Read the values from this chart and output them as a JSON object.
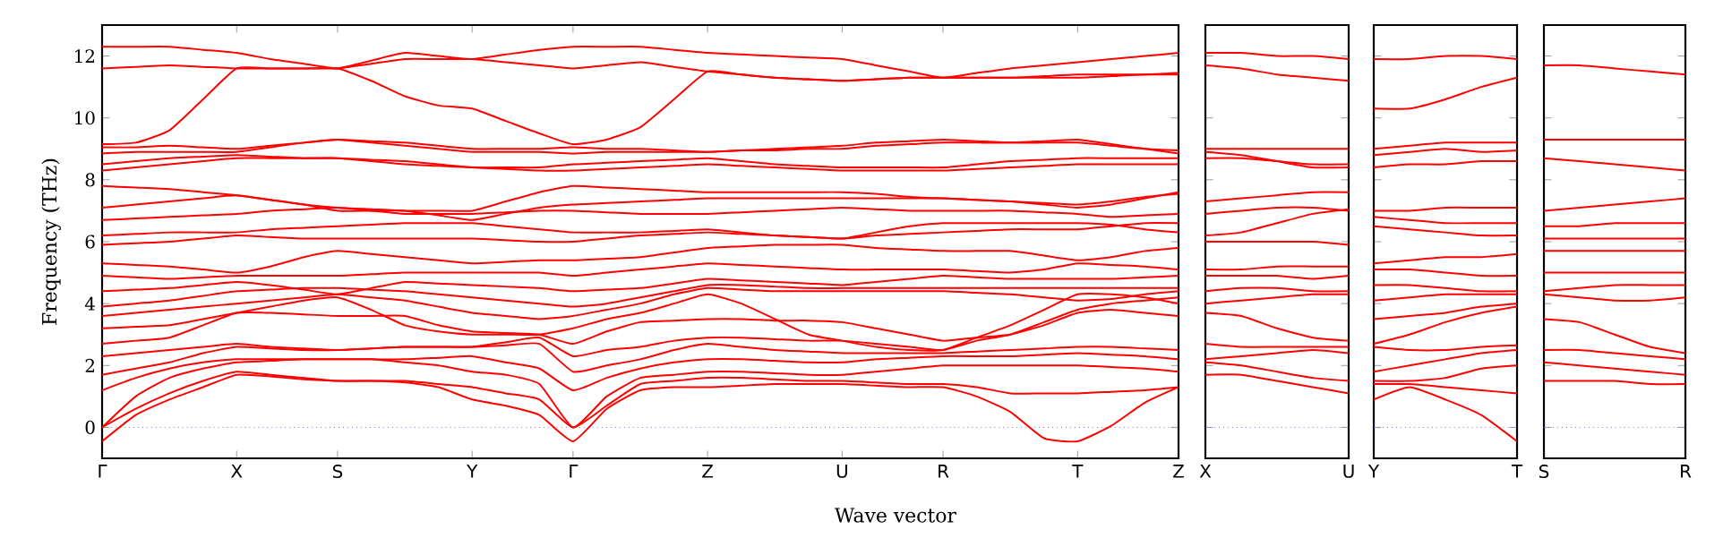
{
  "chart_data": [
    {
      "type": "line",
      "xlabel": "Wave vector",
      "ylabel": "Frequency (THz)",
      "ylim": [
        -1,
        13
      ],
      "yticks": [
        0,
        2,
        4,
        6,
        8,
        10,
        12
      ],
      "categories": [
        "Γ",
        null,
        null,
        null,
        "X",
        null,
        null,
        "S",
        null,
        null,
        null,
        "Y",
        null,
        null,
        "Γ",
        null,
        null,
        null,
        "Z",
        null,
        null,
        null,
        "U",
        null,
        null,
        "R",
        null,
        null,
        null,
        "T",
        null,
        null,
        "Z"
      ],
      "ref_lines": [
        {
          "axis": "y",
          "value": 0,
          "color": "#7070ff",
          "line_style": "dotted"
        }
      ],
      "series": [
        {
          "color": "#ff0000",
          "values": [
            -0.45,
            0.4,
            0.9,
            1.3,
            1.7,
            1.65,
            1.55,
            1.5,
            1.5,
            1.45,
            1.3,
            0.9,
            0.7,
            0.4,
            -0.45,
            0.6,
            1.2,
            1.3,
            1.3,
            1.35,
            1.4,
            1.4,
            1.4,
            1.35,
            1.3,
            1.3,
            1.0,
            0.5,
            -0.35,
            -0.45,
            0.05,
            0.8,
            1.3
          ]
        },
        {
          "color": "#ff0000",
          "values": [
            0,
            0.6,
            1.1,
            1.5,
            1.8,
            1.7,
            1.6,
            1.5,
            1.5,
            1.5,
            1.4,
            1.3,
            1.1,
            0.9,
            0,
            0.7,
            1.4,
            1.5,
            1.6,
            1.6,
            1.55,
            1.5,
            1.5,
            1.45,
            1.4,
            1.4,
            1.3,
            1.1,
            1.1,
            1.1,
            1.15,
            1.2,
            1.3
          ]
        },
        {
          "color": "#ff0000",
          "values": [
            0,
            1.0,
            1.6,
            1.9,
            2.1,
            2.15,
            2.2,
            2.2,
            2.2,
            2.1,
            2.0,
            1.8,
            1.7,
            1.4,
            0,
            1.0,
            1.6,
            1.7,
            1.8,
            1.8,
            1.75,
            1.7,
            1.7,
            1.8,
            1.9,
            2.0,
            2.0,
            2.0,
            2.0,
            2.0,
            1.95,
            1.9,
            1.8
          ]
        },
        {
          "color": "#ff0000",
          "values": [
            1.2,
            1.6,
            1.9,
            2.1,
            2.2,
            2.2,
            2.2,
            2.2,
            2.2,
            2.2,
            2.25,
            2.3,
            2.1,
            1.9,
            1.2,
            1.6,
            1.9,
            2.1,
            2.2,
            2.2,
            2.15,
            2.1,
            2.1,
            2.2,
            2.25,
            2.3,
            2.3,
            2.3,
            2.35,
            2.4,
            2.35,
            2.3,
            2.2
          ]
        },
        {
          "color": "#ff0000",
          "values": [
            1.7,
            1.9,
            2.1,
            2.4,
            2.6,
            2.55,
            2.5,
            2.5,
            2.55,
            2.6,
            2.6,
            2.6,
            2.65,
            2.7,
            1.8,
            2.0,
            2.2,
            2.5,
            2.7,
            2.6,
            2.5,
            2.45,
            2.4,
            2.4,
            2.4,
            2.4,
            2.45,
            2.5,
            2.55,
            2.6,
            2.6,
            2.55,
            2.5
          ]
        },
        {
          "color": "#ff0000",
          "values": [
            2.3,
            2.4,
            2.5,
            2.6,
            2.7,
            2.6,
            2.55,
            2.5,
            2.55,
            2.6,
            2.6,
            2.6,
            2.75,
            2.9,
            2.3,
            2.5,
            2.6,
            2.8,
            2.9,
            2.9,
            2.85,
            2.8,
            2.8,
            2.7,
            2.6,
            2.5,
            2.8,
            3.0,
            3.4,
            3.8,
            4.0,
            4.1,
            4.2
          ]
        },
        {
          "color": "#ff0000",
          "values": [
            2.7,
            2.8,
            2.9,
            3.3,
            3.7,
            3.7,
            3.65,
            3.6,
            3.6,
            3.6,
            3.3,
            3.1,
            3.05,
            3.0,
            2.7,
            3.1,
            3.4,
            3.45,
            3.5,
            3.5,
            3.45,
            3.45,
            3.4,
            3.2,
            3.0,
            2.8,
            2.9,
            3.0,
            3.3,
            3.7,
            3.8,
            3.7,
            3.6
          ]
        },
        {
          "color": "#ff0000",
          "values": [
            3.2,
            3.25,
            3.3,
            3.5,
            3.7,
            3.9,
            4.1,
            4.2,
            3.8,
            3.3,
            3.1,
            3.0,
            3.0,
            3.0,
            3.2,
            3.5,
            3.7,
            4.0,
            4.3,
            4.0,
            3.5,
            3.0,
            2.8,
            2.6,
            2.5,
            2.5,
            2.9,
            3.3,
            3.8,
            4.3,
            4.3,
            4.2,
            4.0
          ]
        },
        {
          "color": "#ff0000",
          "values": [
            3.6,
            3.7,
            3.8,
            3.9,
            4.0,
            4.1,
            4.2,
            4.3,
            4.2,
            4.1,
            3.9,
            3.7,
            3.6,
            3.5,
            3.6,
            3.8,
            4.0,
            4.3,
            4.5,
            4.45,
            4.4,
            4.4,
            4.4,
            4.4,
            4.4,
            4.4,
            4.35,
            4.3,
            4.2,
            4.1,
            4.15,
            4.3,
            4.4
          ]
        },
        {
          "color": "#ff0000",
          "values": [
            3.9,
            4.0,
            4.1,
            4.25,
            4.4,
            4.45,
            4.5,
            4.5,
            4.45,
            4.4,
            4.3,
            4.2,
            4.1,
            4.0,
            3.9,
            4.0,
            4.2,
            4.4,
            4.6,
            4.6,
            4.55,
            4.5,
            4.5,
            4.5,
            4.5,
            4.5,
            4.5,
            4.5,
            4.5,
            4.5,
            4.5,
            4.5,
            4.5
          ]
        },
        {
          "color": "#ff0000",
          "values": [
            4.4,
            4.45,
            4.5,
            4.6,
            4.7,
            4.6,
            4.45,
            4.3,
            4.5,
            4.7,
            4.65,
            4.6,
            4.55,
            4.5,
            4.4,
            4.45,
            4.5,
            4.65,
            4.8,
            4.75,
            4.7,
            4.65,
            4.6,
            4.7,
            4.8,
            4.9,
            4.85,
            4.8,
            4.8,
            4.8,
            4.8,
            4.85,
            4.9
          ]
        },
        {
          "color": "#ff0000",
          "values": [
            4.9,
            4.85,
            4.8,
            4.85,
            4.9,
            4.9,
            4.9,
            4.9,
            4.95,
            5.0,
            5.0,
            5.0,
            5.0,
            5.0,
            4.9,
            5.0,
            5.1,
            5.2,
            5.3,
            5.25,
            5.2,
            5.15,
            5.1,
            5.1,
            5.1,
            5.1,
            5.05,
            5.0,
            5.1,
            5.3,
            5.25,
            5.2,
            5.1
          ]
        },
        {
          "color": "#ff0000",
          "values": [
            5.3,
            5.25,
            5.2,
            5.1,
            5.0,
            5.2,
            5.5,
            5.7,
            5.6,
            5.5,
            5.4,
            5.3,
            5.35,
            5.4,
            5.4,
            5.45,
            5.5,
            5.65,
            5.8,
            5.85,
            5.9,
            5.9,
            5.9,
            5.8,
            5.75,
            5.7,
            5.7,
            5.7,
            5.55,
            5.4,
            5.5,
            5.7,
            5.8
          ]
        },
        {
          "color": "#ff0000",
          "values": [
            5.9,
            5.95,
            6.0,
            6.1,
            6.2,
            6.15,
            6.1,
            6.1,
            6.1,
            6.1,
            6.1,
            6.1,
            6.05,
            6.0,
            6.0,
            6.1,
            6.2,
            6.25,
            6.3,
            6.25,
            6.2,
            6.15,
            6.1,
            6.3,
            6.5,
            6.6,
            6.6,
            6.6,
            6.6,
            6.6,
            6.55,
            6.4,
            6.3
          ]
        },
        {
          "color": "#ff0000",
          "values": [
            6.2,
            6.25,
            6.3,
            6.3,
            6.3,
            6.4,
            6.45,
            6.5,
            6.55,
            6.6,
            6.6,
            6.6,
            6.5,
            6.4,
            6.3,
            6.3,
            6.3,
            6.35,
            6.4,
            6.3,
            6.2,
            6.15,
            6.1,
            6.2,
            6.25,
            6.3,
            6.35,
            6.4,
            6.4,
            6.4,
            6.5,
            6.6,
            6.6
          ]
        },
        {
          "color": "#ff0000",
          "values": [
            6.7,
            6.75,
            6.8,
            6.85,
            6.9,
            7.0,
            7.05,
            7.1,
            7.0,
            6.9,
            6.9,
            6.9,
            6.95,
            7.0,
            7.0,
            6.95,
            6.9,
            6.9,
            6.9,
            6.95,
            7.0,
            7.05,
            7.1,
            7.05,
            7.0,
            7.0,
            7.0,
            7.0,
            6.95,
            6.9,
            6.8,
            6.85,
            6.9
          ]
        },
        {
          "color": "#ff0000",
          "values": [
            7.1,
            7.2,
            7.3,
            7.4,
            7.5,
            7.35,
            7.2,
            7.0,
            7.0,
            7.0,
            6.85,
            6.7,
            6.9,
            7.1,
            7.2,
            7.25,
            7.3,
            7.35,
            7.4,
            7.4,
            7.4,
            7.4,
            7.4,
            7.4,
            7.4,
            7.4,
            7.35,
            7.3,
            7.2,
            7.1,
            7.2,
            7.4,
            7.6
          ]
        },
        {
          "color": "#ff0000",
          "values": [
            7.8,
            7.75,
            7.7,
            7.6,
            7.5,
            7.35,
            7.2,
            7.1,
            7.05,
            7.0,
            7.0,
            7.0,
            7.3,
            7.6,
            7.8,
            7.75,
            7.7,
            7.65,
            7.6,
            7.6,
            7.6,
            7.6,
            7.6,
            7.55,
            7.45,
            7.4,
            7.35,
            7.3,
            7.25,
            7.2,
            7.3,
            7.45,
            7.55
          ]
        },
        {
          "color": "#ff0000",
          "values": [
            8.3,
            8.4,
            8.5,
            8.6,
            8.7,
            8.7,
            8.7,
            8.7,
            8.6,
            8.5,
            8.45,
            8.4,
            8.35,
            8.3,
            8.3,
            8.35,
            8.4,
            8.45,
            8.5,
            8.45,
            8.4,
            8.35,
            8.3,
            8.3,
            8.3,
            8.3,
            8.35,
            8.4,
            8.45,
            8.5,
            8.5,
            8.5,
            8.5
          ]
        },
        {
          "color": "#ff0000",
          "values": [
            8.5,
            8.6,
            8.7,
            8.75,
            8.8,
            8.75,
            8.7,
            8.7,
            8.65,
            8.6,
            8.5,
            8.4,
            8.4,
            8.4,
            8.5,
            8.55,
            8.6,
            8.65,
            8.7,
            8.6,
            8.5,
            8.45,
            8.4,
            8.4,
            8.4,
            8.4,
            8.5,
            8.6,
            8.65,
            8.7,
            8.7,
            8.7,
            8.7
          ]
        },
        {
          "color": "#ff0000",
          "values": [
            8.85,
            8.9,
            8.9,
            8.9,
            8.9,
            9.05,
            9.2,
            9.3,
            9.2,
            9.1,
            9.0,
            8.9,
            8.9,
            8.9,
            8.85,
            8.9,
            8.9,
            8.9,
            8.9,
            8.95,
            8.95,
            9.0,
            9.0,
            9.1,
            9.15,
            9.2,
            9.2,
            9.2,
            9.25,
            9.3,
            9.15,
            9.0,
            8.85
          ]
        },
        {
          "color": "#ff0000",
          "values": [
            9.05,
            9.05,
            9.1,
            9.05,
            9.0,
            9.1,
            9.2,
            9.3,
            9.25,
            9.2,
            9.1,
            9.0,
            9.0,
            9.0,
            9.05,
            9.0,
            9.0,
            8.95,
            8.9,
            8.95,
            9.0,
            9.05,
            9.1,
            9.2,
            9.25,
            9.3,
            9.25,
            9.2,
            9.2,
            9.2,
            9.1,
            9.0,
            8.95
          ]
        },
        {
          "color": "#ff0000",
          "values": [
            9.15,
            9.2,
            9.6,
            10.6,
            11.6,
            11.6,
            11.6,
            11.6,
            11.2,
            10.7,
            10.4,
            10.3,
            9.9,
            9.5,
            9.15,
            9.3,
            9.7,
            10.6,
            11.5,
            11.4,
            11.3,
            11.25,
            11.2,
            11.25,
            11.3,
            11.3,
            11.3,
            11.3,
            11.3,
            11.3,
            11.35,
            11.4,
            11.4
          ]
        },
        {
          "color": "#ff0000",
          "values": [
            11.6,
            11.65,
            11.7,
            11.65,
            11.6,
            11.6,
            11.6,
            11.6,
            11.75,
            11.9,
            11.9,
            11.9,
            11.8,
            11.7,
            11.6,
            11.7,
            11.8,
            11.65,
            11.5,
            11.4,
            11.3,
            11.25,
            11.2,
            11.25,
            11.3,
            11.3,
            11.3,
            11.3,
            11.35,
            11.4,
            11.4,
            11.4,
            11.45
          ]
        },
        {
          "color": "#ff0000",
          "values": [
            12.3,
            12.3,
            12.3,
            12.2,
            12.1,
            11.9,
            11.75,
            11.6,
            11.85,
            12.1,
            12.0,
            11.9,
            12.05,
            12.2,
            12.3,
            12.3,
            12.3,
            12.2,
            12.1,
            12.05,
            12.0,
            11.95,
            11.9,
            11.7,
            11.5,
            11.3,
            11.45,
            11.6,
            11.7,
            11.8,
            11.9,
            12.0,
            12.1
          ]
        }
      ]
    },
    {
      "type": "line",
      "ylim": [
        -1,
        13
      ],
      "yticks": [
        0,
        2,
        4,
        6,
        8,
        10,
        12
      ],
      "tick_labels": "x",
      "categories": [
        "X",
        null,
        null,
        null,
        "U"
      ],
      "ref_lines": [
        {
          "axis": "y",
          "value": 0,
          "color": "#7070ff",
          "line_style": "dotted"
        }
      ],
      "series": [
        {
          "color": "#ff0000",
          "values": [
            12.1,
            12.1,
            12.0,
            12.0,
            11.9
          ]
        },
        {
          "color": "#ff0000",
          "values": [
            11.7,
            11.6,
            11.4,
            11.3,
            11.2
          ]
        },
        {
          "color": "#ff0000",
          "values": [
            9.0,
            9.0,
            9.0,
            9.0,
            9.0
          ]
        },
        {
          "color": "#ff0000",
          "values": [
            8.9,
            8.8,
            8.6,
            8.4,
            8.4
          ]
        },
        {
          "color": "#ff0000",
          "values": [
            8.7,
            8.7,
            8.6,
            8.5,
            8.5
          ]
        },
        {
          "color": "#ff0000",
          "values": [
            7.3,
            7.4,
            7.5,
            7.6,
            7.6
          ]
        },
        {
          "color": "#ff0000",
          "values": [
            6.9,
            7.0,
            7.1,
            7.1,
            7.0
          ]
        },
        {
          "color": "#ff0000",
          "values": [
            6.2,
            6.3,
            6.6,
            6.9,
            7.05
          ]
        },
        {
          "color": "#ff0000",
          "values": [
            6.0,
            6.0,
            6.0,
            6.0,
            5.9
          ]
        },
        {
          "color": "#ff0000",
          "values": [
            5.1,
            5.1,
            5.2,
            5.2,
            5.2
          ]
        },
        {
          "color": "#ff0000",
          "values": [
            4.9,
            4.9,
            4.9,
            4.8,
            4.9
          ]
        },
        {
          "color": "#ff0000",
          "values": [
            4.4,
            4.5,
            4.5,
            4.4,
            4.4
          ]
        },
        {
          "color": "#ff0000",
          "values": [
            4.0,
            4.1,
            4.2,
            4.3,
            4.3
          ]
        },
        {
          "color": "#ff0000",
          "values": [
            3.7,
            3.6,
            3.2,
            2.9,
            2.8
          ]
        },
        {
          "color": "#ff0000",
          "values": [
            2.7,
            2.6,
            2.6,
            2.6,
            2.6
          ]
        },
        {
          "color": "#ff0000",
          "values": [
            2.2,
            2.3,
            2.4,
            2.5,
            2.4
          ]
        },
        {
          "color": "#ff0000",
          "values": [
            2.1,
            2.0,
            1.8,
            1.6,
            1.5
          ]
        },
        {
          "color": "#ff0000",
          "values": [
            1.7,
            1.7,
            1.5,
            1.3,
            1.1
          ]
        }
      ]
    },
    {
      "type": "line",
      "ylim": [
        -1,
        13
      ],
      "yticks": [
        0,
        2,
        4,
        6,
        8,
        10,
        12
      ],
      "tick_labels": "x",
      "categories": [
        "Y",
        null,
        null,
        null,
        "T"
      ],
      "ref_lines": [
        {
          "axis": "y",
          "value": 0,
          "color": "#7070ff",
          "line_style": "dotted"
        }
      ],
      "series": [
        {
          "color": "#ff0000",
          "values": [
            11.9,
            11.9,
            12.0,
            12.0,
            11.9
          ]
        },
        {
          "color": "#ff0000",
          "values": [
            10.3,
            10.3,
            10.6,
            11.0,
            11.3
          ]
        },
        {
          "color": "#ff0000",
          "values": [
            9.0,
            9.1,
            9.2,
            9.2,
            9.2
          ]
        },
        {
          "color": "#ff0000",
          "values": [
            8.8,
            8.9,
            9.0,
            8.9,
            8.95
          ]
        },
        {
          "color": "#ff0000",
          "values": [
            8.4,
            8.5,
            8.5,
            8.6,
            8.6
          ]
        },
        {
          "color": "#ff0000",
          "values": [
            7.0,
            7.0,
            7.1,
            7.1,
            7.1
          ]
        },
        {
          "color": "#ff0000",
          "values": [
            6.8,
            6.7,
            6.6,
            6.6,
            6.6
          ]
        },
        {
          "color": "#ff0000",
          "values": [
            6.5,
            6.4,
            6.3,
            6.2,
            6.2
          ]
        },
        {
          "color": "#ff0000",
          "values": [
            5.3,
            5.4,
            5.5,
            5.5,
            5.6
          ]
        },
        {
          "color": "#ff0000",
          "values": [
            5.1,
            5.1,
            5.0,
            4.9,
            4.9
          ]
        },
        {
          "color": "#ff0000",
          "values": [
            4.6,
            4.6,
            4.5,
            4.4,
            4.4
          ]
        },
        {
          "color": "#ff0000",
          "values": [
            4.1,
            4.2,
            4.3,
            4.3,
            4.3
          ]
        },
        {
          "color": "#ff0000",
          "values": [
            3.5,
            3.6,
            3.7,
            3.9,
            4.0
          ]
        },
        {
          "color": "#ff0000",
          "values": [
            2.7,
            3.0,
            3.4,
            3.7,
            3.9
          ]
        },
        {
          "color": "#ff0000",
          "values": [
            2.6,
            2.5,
            2.5,
            2.6,
            2.65
          ]
        },
        {
          "color": "#ff0000",
          "values": [
            1.8,
            2.0,
            2.2,
            2.4,
            2.5
          ]
        },
        {
          "color": "#ff0000",
          "values": [
            1.5,
            1.5,
            1.6,
            1.9,
            2.0
          ]
        },
        {
          "color": "#ff0000",
          "values": [
            1.4,
            1.4,
            1.3,
            1.2,
            1.1
          ]
        },
        {
          "color": "#ff0000",
          "values": [
            0.9,
            1.3,
            0.9,
            0.4,
            -0.45
          ]
        }
      ]
    },
    {
      "type": "line",
      "ylim": [
        -1,
        13
      ],
      "yticks": [
        0,
        2,
        4,
        6,
        8,
        10,
        12
      ],
      "tick_labels": "x",
      "categories": [
        "S",
        null,
        null,
        null,
        "R"
      ],
      "ref_lines": [
        {
          "axis": "y",
          "value": 0,
          "color": "#7070ff",
          "line_style": "dotted"
        }
      ],
      "series": [
        {
          "color": "#ff0000",
          "values": [
            11.7,
            11.7,
            11.6,
            11.5,
            11.4
          ]
        },
        {
          "color": "#ff0000",
          "values": [
            9.3,
            9.3,
            9.3,
            9.3,
            9.3
          ]
        },
        {
          "color": "#ff0000",
          "values": [
            8.7,
            8.6,
            8.5,
            8.4,
            8.3
          ]
        },
        {
          "color": "#ff0000",
          "values": [
            7.0,
            7.1,
            7.2,
            7.3,
            7.4
          ]
        },
        {
          "color": "#ff0000",
          "values": [
            6.5,
            6.5,
            6.6,
            6.6,
            6.6
          ]
        },
        {
          "color": "#ff0000",
          "values": [
            6.1,
            6.1,
            6.1,
            6.1,
            6.1
          ]
        },
        {
          "color": "#ff0000",
          "values": [
            5.7,
            5.7,
            5.7,
            5.7,
            5.7
          ]
        },
        {
          "color": "#ff0000",
          "values": [
            5.0,
            5.0,
            5.0,
            5.0,
            5.0
          ]
        },
        {
          "color": "#ff0000",
          "values": [
            4.4,
            4.5,
            4.6,
            4.6,
            4.6
          ]
        },
        {
          "color": "#ff0000",
          "values": [
            4.3,
            4.2,
            4.1,
            4.1,
            4.2
          ]
        },
        {
          "color": "#ff0000",
          "values": [
            3.5,
            3.4,
            3.0,
            2.6,
            2.4
          ]
        },
        {
          "color": "#ff0000",
          "values": [
            2.5,
            2.5,
            2.4,
            2.3,
            2.2
          ]
        },
        {
          "color": "#ff0000",
          "values": [
            2.1,
            2.0,
            1.9,
            1.8,
            1.7
          ]
        },
        {
          "color": "#ff0000",
          "values": [
            1.5,
            1.5,
            1.5,
            1.4,
            1.4
          ]
        }
      ]
    }
  ]
}
